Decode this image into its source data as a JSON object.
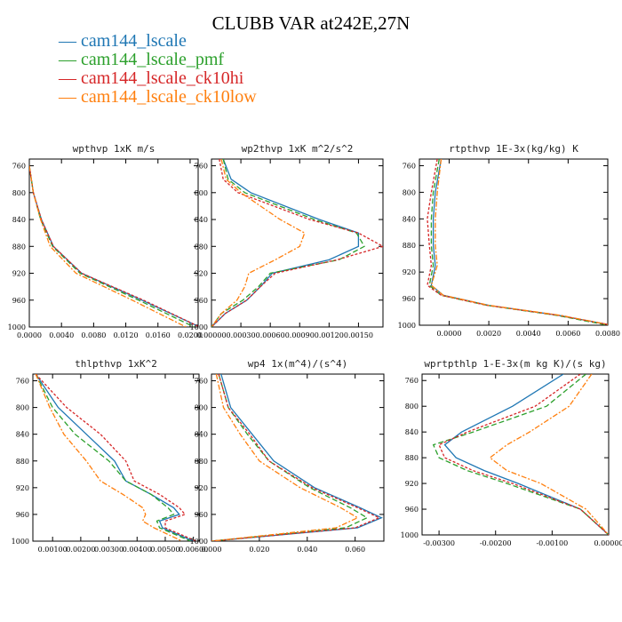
{
  "title": "CLUBB VAR at242E,27N",
  "legend": [
    {
      "label": "cam144_lscale",
      "color": "#1f77b4"
    },
    {
      "label": "cam144_lscale_pmf",
      "color": "#2ca02c"
    },
    {
      "label": "cam144_lscale_ck10hi",
      "color": "#d62728"
    },
    {
      "label": "cam144_lscale_ck10low",
      "color": "#ff7f0e"
    }
  ],
  "chart_data": [
    {
      "type": "line",
      "title": "wpthvp  1xK m/s",
      "xlim": [
        0,
        0.021
      ],
      "ylim": [
        1000,
        750
      ],
      "xticks": [
        0.0,
        0.004,
        0.008,
        0.012,
        0.016,
        0.02
      ],
      "xtick_labels": [
        "0.0000",
        "0.0040",
        "0.0080",
        "0.0120",
        "0.0160",
        "0.0200"
      ],
      "yticks": [
        760,
        800,
        840,
        880,
        920,
        960,
        1000
      ],
      "y": [
        760,
        800,
        840,
        880,
        920,
        960,
        1000
      ],
      "series": [
        {
          "name": "cam144_lscale",
          "x": [
            0.0,
            0.0005,
            0.0015,
            0.003,
            0.0065,
            0.014,
            0.0212
          ]
        },
        {
          "name": "cam144_lscale_pmf",
          "x": [
            0.0,
            0.0005,
            0.0014,
            0.0029,
            0.0063,
            0.0136,
            0.0205
          ]
        },
        {
          "name": "cam144_lscale_ck10hi",
          "x": [
            0.0,
            0.0005,
            0.0015,
            0.003,
            0.0065,
            0.0142,
            0.0212
          ]
        },
        {
          "name": "cam144_lscale_ck10low",
          "x": [
            0.0,
            0.0005,
            0.0014,
            0.0026,
            0.0058,
            0.0128,
            0.0195
          ]
        }
      ]
    },
    {
      "type": "line",
      "title": "wp2thvp  1xK m^2/s^2",
      "xlim": [
        0,
        0.00175
      ],
      "ylim": [
        1000,
        750
      ],
      "xticks": [
        0.0,
        0.0003,
        0.0006,
        0.0009,
        0.0012,
        0.0015
      ],
      "xtick_labels": [
        "0.00000",
        "0.00030",
        "0.00060",
        "0.00090",
        "0.00120",
        "0.00150"
      ],
      "yticks": [
        760,
        800,
        840,
        880,
        920,
        960,
        1000
      ],
      "y": [
        750,
        780,
        800,
        840,
        860,
        880,
        900,
        920,
        940,
        960,
        980,
        1000
      ],
      "series": [
        {
          "name": "cam144_lscale",
          "x": [
            0.00012,
            0.0002,
            0.0004,
            0.0011,
            0.0015,
            0.0015,
            0.0012,
            0.00062,
            0.0005,
            0.00036,
            0.00014,
            0.0
          ]
        },
        {
          "name": "cam144_lscale_pmf",
          "x": [
            0.00012,
            0.00017,
            0.00034,
            0.00105,
            0.00148,
            0.00156,
            0.0013,
            0.0006,
            0.00048,
            0.00032,
            0.0001,
            0.0
          ]
        },
        {
          "name": "cam144_lscale_ck10hi",
          "x": [
            8e-05,
            0.00012,
            0.00027,
            0.001,
            0.0015,
            0.00175,
            0.00128,
            0.00065,
            0.0005,
            0.00036,
            0.00014,
            0.0
          ]
        },
        {
          "name": "cam144_lscale_ck10low",
          "x": [
            0.0001,
            0.00015,
            0.0003,
            0.0007,
            0.00095,
            0.0009,
            0.00065,
            0.00038,
            0.00034,
            0.00026,
            0.0001,
            0.0
          ]
        }
      ]
    },
    {
      "type": "line",
      "title": "rtpthvp  1E-3x(kg/kg) K",
      "xlim": [
        -0.0015,
        0.008
      ],
      "ylim": [
        1000,
        750
      ],
      "xticks": [
        0.0,
        0.002,
        0.004,
        0.006,
        0.008
      ],
      "xtick_labels": [
        "0.0000",
        "0.0020",
        "0.0040",
        "0.0060",
        "0.0080"
      ],
      "yticks": [
        760,
        800,
        840,
        880,
        920,
        960,
        1000
      ],
      "y": [
        750,
        800,
        840,
        880,
        910,
        940,
        955,
        970,
        985,
        1000
      ],
      "series": [
        {
          "name": "cam144_lscale",
          "x": [
            -0.0004,
            -0.0007,
            -0.0008,
            -0.0008,
            -0.0007,
            -0.0009,
            -0.0003,
            0.002,
            0.0055,
            0.0082
          ]
        },
        {
          "name": "cam144_lscale_pmf",
          "x": [
            -0.0005,
            -0.0008,
            -0.0009,
            -0.0009,
            -0.0008,
            -0.001,
            -0.0004,
            0.0019,
            0.0054,
            0.008
          ]
        },
        {
          "name": "cam144_lscale_ck10hi",
          "x": [
            -0.0006,
            -0.0009,
            -0.0011,
            -0.001,
            -0.0009,
            -0.0011,
            -0.0004,
            0.0019,
            0.0055,
            0.0082
          ]
        },
        {
          "name": "cam144_lscale_ck10low",
          "x": [
            -0.0004,
            -0.0006,
            -0.0007,
            -0.0007,
            -0.0006,
            -0.0009,
            -0.0003,
            0.002,
            0.0056,
            0.0082
          ]
        }
      ]
    },
    {
      "type": "line",
      "title": "thlpthvp  1xK^2",
      "xlim": [
        0.0003,
        0.0062
      ],
      "ylim": [
        1000,
        750
      ],
      "xticks": [
        0.001,
        0.002,
        0.003,
        0.004,
        0.005,
        0.006
      ],
      "xtick_labels": [
        "0.00100",
        "0.00200",
        "0.00300",
        "0.00400",
        "0.00500",
        "0.00600"
      ],
      "yticks": [
        760,
        800,
        840,
        880,
        920,
        960,
        1000
      ],
      "y": [
        750,
        800,
        840,
        880,
        910,
        930,
        950,
        960,
        970,
        980,
        1000
      ],
      "series": [
        {
          "name": "cam144_lscale",
          "x": [
            0.0004,
            0.0012,
            0.0022,
            0.0032,
            0.0036,
            0.0045,
            0.0053,
            0.0055,
            0.0048,
            0.0049,
            0.006
          ]
        },
        {
          "name": "cam144_lscale_pmf",
          "x": [
            0.0004,
            0.001,
            0.0018,
            0.003,
            0.0036,
            0.0045,
            0.0051,
            0.0053,
            0.0047,
            0.0048,
            0.0059
          ]
        },
        {
          "name": "cam144_lscale_ck10hi",
          "x": [
            0.0004,
            0.0015,
            0.0027,
            0.0036,
            0.0039,
            0.0048,
            0.0055,
            0.0057,
            0.005,
            0.005,
            0.0061
          ]
        },
        {
          "name": "cam144_lscale_ck10low",
          "x": [
            0.0004,
            0.0009,
            0.0014,
            0.0022,
            0.0027,
            0.0035,
            0.0042,
            0.0043,
            0.0042,
            0.0046,
            0.0056
          ]
        }
      ]
    },
    {
      "type": "line",
      "title": "wp4  1x(m^4)/(s^4)",
      "xlim": [
        0,
        0.072
      ],
      "ylim": [
        1000,
        750
      ],
      "xticks": [
        0.0,
        0.02,
        0.04,
        0.06
      ],
      "xtick_labels": [
        "0.000",
        "0.020",
        "0.040",
        "0.060"
      ],
      "yticks": [
        760,
        800,
        840,
        880,
        920,
        960,
        1000
      ],
      "y": [
        750,
        800,
        840,
        880,
        920,
        950,
        965,
        980,
        1000
      ],
      "series": [
        {
          "name": "cam144_lscale",
          "x": [
            0.004,
            0.008,
            0.017,
            0.026,
            0.043,
            0.062,
            0.071,
            0.061,
            0.0
          ]
        },
        {
          "name": "cam144_lscale_pmf",
          "x": [
            0.003,
            0.007,
            0.015,
            0.024,
            0.041,
            0.058,
            0.065,
            0.056,
            0.0
          ]
        },
        {
          "name": "cam144_lscale_ck10hi",
          "x": [
            0.003,
            0.007,
            0.016,
            0.024,
            0.042,
            0.061,
            0.07,
            0.06,
            0.0
          ]
        },
        {
          "name": "cam144_lscale_ck10low",
          "x": [
            0.002,
            0.005,
            0.012,
            0.02,
            0.037,
            0.054,
            0.061,
            0.052,
            0.0
          ]
        }
      ]
    },
    {
      "type": "line",
      "title": "wprtpthlp  1-E-3x(m kg K)/(s kg)",
      "xlim": [
        -0.0033,
        0.0
      ],
      "ylim": [
        1000,
        750
      ],
      "xticks": [
        -0.003,
        -0.002,
        -0.001,
        0.0
      ],
      "xtick_labels": [
        "-0.00300",
        "-0.00200",
        "-0.00100",
        "0.00000"
      ],
      "yticks": [
        760,
        800,
        840,
        880,
        920,
        960,
        1000
      ],
      "y": [
        750,
        800,
        840,
        860,
        880,
        900,
        920,
        960,
        1000
      ],
      "series": [
        {
          "name": "cam144_lscale",
          "x": [
            -0.0008,
            -0.0017,
            -0.0026,
            -0.0029,
            -0.0027,
            -0.0022,
            -0.0016,
            -0.0005,
            0.0
          ]
        },
        {
          "name": "cam144_lscale_pmf",
          "x": [
            -0.0004,
            -0.0011,
            -0.0024,
            -0.0031,
            -0.003,
            -0.0025,
            -0.0018,
            -0.0005,
            0.0
          ]
        },
        {
          "name": "cam144_lscale_ck10hi",
          "x": [
            -0.0005,
            -0.0013,
            -0.0025,
            -0.003,
            -0.0029,
            -0.0024,
            -0.0017,
            -0.0005,
            0.0
          ]
        },
        {
          "name": "cam144_lscale_ck10low",
          "x": [
            -0.0003,
            -0.0007,
            -0.0014,
            -0.0018,
            -0.0021,
            -0.0018,
            -0.0012,
            -0.0004,
            0.0
          ]
        }
      ]
    }
  ]
}
